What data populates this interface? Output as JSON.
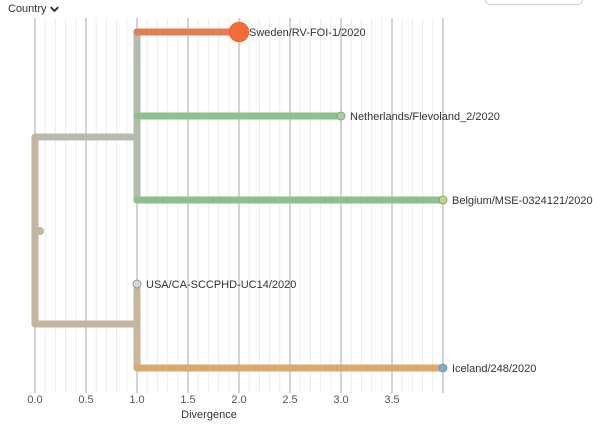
{
  "header": {
    "color_by_label": "Country",
    "color_by_icon": "chevron-down-icon"
  },
  "axis": {
    "label": "Divergence",
    "ticks": [
      "0.0",
      "0.5",
      "1.0",
      "1.5",
      "2.0",
      "2.5",
      "3.0",
      "3.5"
    ],
    "tick_values": [
      0,
      0.5,
      1.0,
      1.5,
      2.0,
      2.5,
      3.0,
      3.5
    ],
    "range": [
      0,
      4
    ],
    "minor_step": 0.1
  },
  "tree": {
    "root_divergence": 0,
    "root_color": "#c3b59f",
    "clades": [
      {
        "divergence": 1.0,
        "color": "#b5bcad",
        "tips": [
          {
            "name": "Sweden/RV-FOI-1/2020",
            "divergence": 2.0,
            "color": "#e07e59",
            "node_color": "#f26b3a",
            "highlighted": true
          },
          {
            "name": "Netherlands/Flevoland_2/2020",
            "divergence": 3.0,
            "color": "#8ebf8f",
            "node_color": "#9ed891"
          },
          {
            "name": "Belgium/MSE-0324121/2020",
            "divergence": 4.0,
            "color": "#8ebf8f",
            "node_color": "#b3e07f"
          }
        ]
      },
      {
        "divergence": 1.0,
        "color": "#c9b79b",
        "tips": [
          {
            "name": "USA/CA-SCCPHD-UC14/2020",
            "divergence": 1.0,
            "color": "#c9b79b",
            "node_color": "#d5d5d5"
          },
          {
            "name": "Iceland/248/2020",
            "divergence": 4.0,
            "color": "#dba969",
            "node_color": "#6fb3d6"
          }
        ]
      }
    ]
  }
}
